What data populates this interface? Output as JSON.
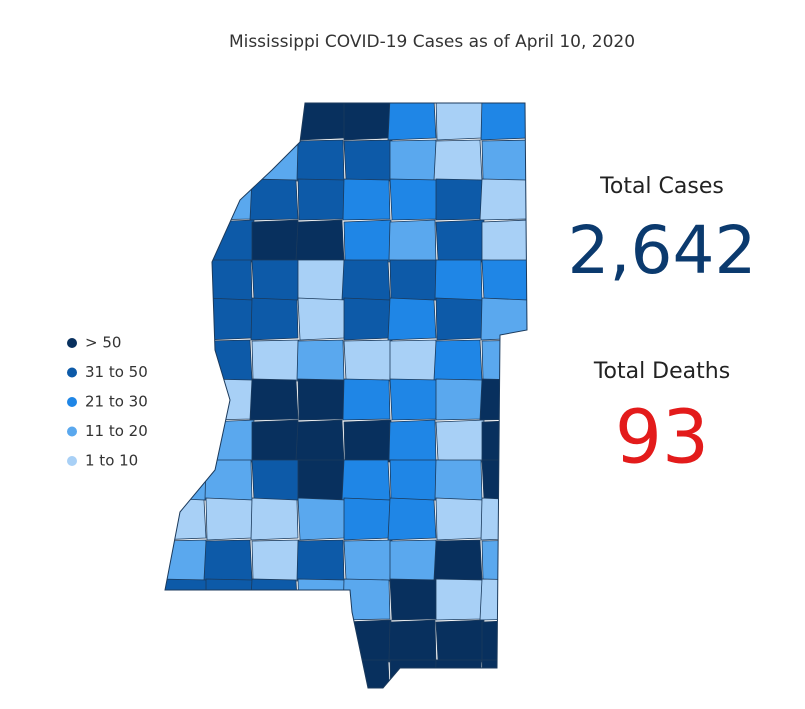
{
  "title": "Mississippi COVID-19 Cases as of April 10, 2020",
  "legend": [
    {
      "label": "> 50",
      "color": "#08305e"
    },
    {
      "label": "31 to 50",
      "color": "#0d5aa8"
    },
    {
      "label": "21 to 30",
      "color": "#1f86e6"
    },
    {
      "label": "11 to 20",
      "color": "#5aa8ee"
    },
    {
      "label": "1 to 10",
      "color": "#a8d0f6"
    }
  ],
  "stats": [
    {
      "label": "Total Cases",
      "value": "2,642",
      "color": "#0b3a6e"
    },
    {
      "label": "Total Deaths",
      "value": "93",
      "color": "#e31b1b"
    }
  ]
}
